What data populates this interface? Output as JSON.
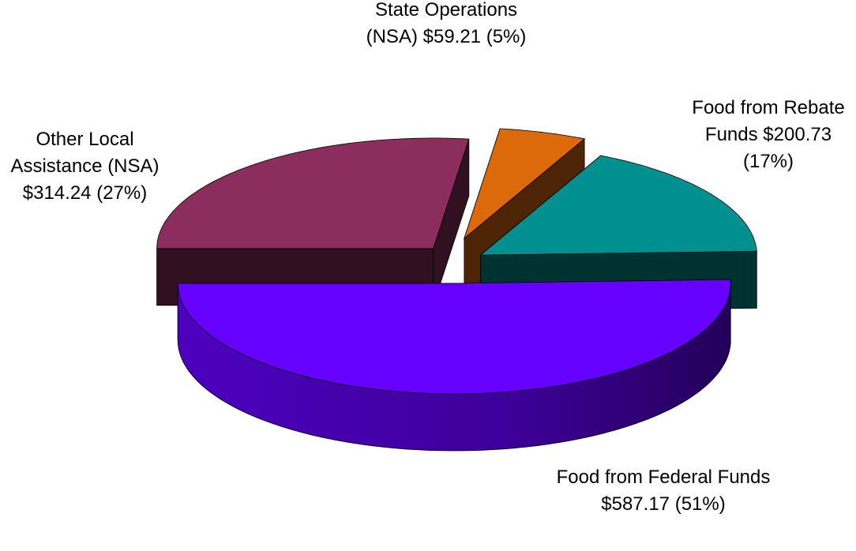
{
  "chart_data": {
    "type": "pie",
    "categories": [
      "Food from Federal Funds",
      "Other Local Assistance (NSA)",
      "State Operations (NSA)",
      "Food from Rebate Funds"
    ],
    "values": [
      587.17,
      314.24,
      59.21,
      200.73
    ],
    "value_labels": [
      "$587.17",
      "$314.24",
      "$59.21",
      "$200.73"
    ],
    "percent_labels": [
      "(51%)",
      "(27%)",
      "(5%)",
      "(17%)"
    ],
    "colors": [
      "#6600ff",
      "#8b2e5e",
      "#dd6a0a",
      "#009090"
    ],
    "exploded": true
  }
}
